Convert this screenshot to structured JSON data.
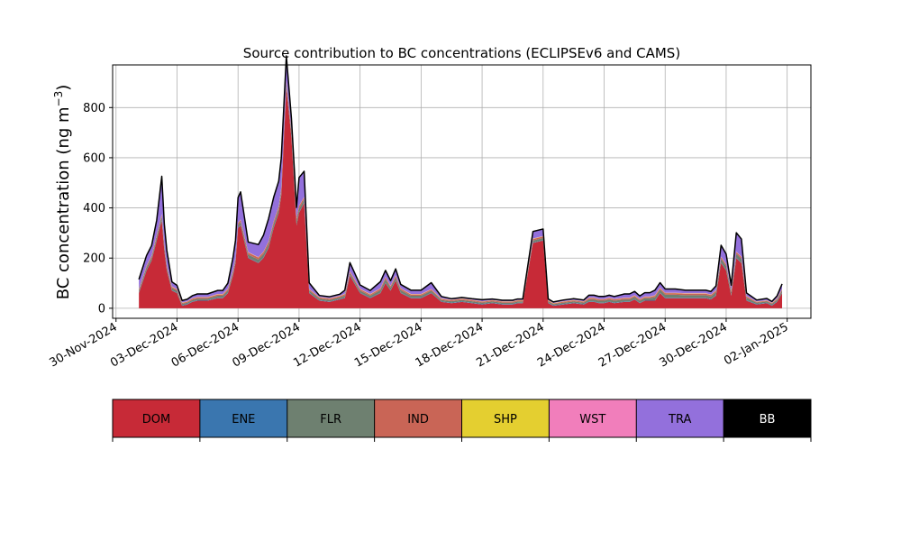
{
  "chart_data": {
    "type": "area",
    "title": "Source contribution to BC concentrations (ECLIPSEv6 and CAMS)",
    "ylabel": "BC concentration (ng m",
    "ylabel_superscript": "−3",
    "ylabel_close": ")",
    "xlabel": "",
    "ylim": [
      -40,
      970
    ],
    "yticks": [
      0,
      200,
      400,
      600,
      800
    ],
    "xlim": [
      "2024-11-29T20:00",
      "2025-01-03T04:00"
    ],
    "xticks": [
      "2024-11-30",
      "2024-12-03",
      "2024-12-06",
      "2024-12-09",
      "2024-12-12",
      "2024-12-15",
      "2024-12-18",
      "2024-12-21",
      "2024-12-24",
      "2024-12-27",
      "2024-12-30",
      "2025-01-02"
    ],
    "xtick_labels": [
      "30-Nov-2024",
      "03-Dec-2024",
      "06-Dec-2024",
      "09-Dec-2024",
      "12-Dec-2024",
      "15-Dec-2024",
      "18-Dec-2024",
      "21-Dec-2024",
      "24-Dec-2024",
      "27-Dec-2024",
      "30-Dec-2024",
      "02-Jan-2025"
    ],
    "grid": true,
    "stacking": "stacked",
    "legend_placement": "below",
    "x": [
      "2024-12-01T03:00",
      "2024-12-01T12:00",
      "2024-12-01T18:00",
      "2024-12-02T00:00",
      "2024-12-02T06:00",
      "2024-12-02T09:00",
      "2024-12-02T12:00",
      "2024-12-02T18:00",
      "2024-12-03T00:00",
      "2024-12-03T06:00",
      "2024-12-03T12:00",
      "2024-12-03T18:00",
      "2024-12-04T00:00",
      "2024-12-04T12:00",
      "2024-12-05T00:00",
      "2024-12-05T06:00",
      "2024-12-05T12:00",
      "2024-12-05T18:00",
      "2024-12-05T21:00",
      "2024-12-06T00:00",
      "2024-12-06T03:00",
      "2024-12-06T12:00",
      "2024-12-07T00:00",
      "2024-12-07T06:00",
      "2024-12-07T12:00",
      "2024-12-07T18:00",
      "2024-12-08T00:00",
      "2024-12-08T03:00",
      "2024-12-08T09:00",
      "2024-12-08T15:00",
      "2024-12-08T21:00",
      "2024-12-09T00:00",
      "2024-12-09T06:00",
      "2024-12-09T12:00",
      "2024-12-10T00:00",
      "2024-12-10T12:00",
      "2024-12-11T00:00",
      "2024-12-11T06:00",
      "2024-12-11T12:00",
      "2024-12-12T00:00",
      "2024-12-12T12:00",
      "2024-12-13T00:00",
      "2024-12-13T06:00",
      "2024-12-13T12:00",
      "2024-12-13T18:00",
      "2024-12-14T00:00",
      "2024-12-14T12:00",
      "2024-12-15T00:00",
      "2024-12-15T12:00",
      "2024-12-16T00:00",
      "2024-12-16T12:00",
      "2024-12-17T00:00",
      "2024-12-17T12:00",
      "2024-12-18T00:00",
      "2024-12-18T12:00",
      "2024-12-19T00:00",
      "2024-12-19T06:00",
      "2024-12-19T12:00",
      "2024-12-19T18:00",
      "2024-12-20T00:00",
      "2024-12-20T12:00",
      "2024-12-21T00:00",
      "2024-12-21T06:00",
      "2024-12-21T12:00",
      "2024-12-22T00:00",
      "2024-12-22T12:00",
      "2024-12-23T00:00",
      "2024-12-23T06:00",
      "2024-12-23T12:00",
      "2024-12-23T18:00",
      "2024-12-24T00:00",
      "2024-12-24T06:00",
      "2024-12-24T12:00",
      "2024-12-25T00:00",
      "2024-12-25T06:00",
      "2024-12-25T12:00",
      "2024-12-25T18:00",
      "2024-12-26T00:00",
      "2024-12-26T06:00",
      "2024-12-26T12:00",
      "2024-12-26T18:00",
      "2024-12-27T00:00",
      "2024-12-27T12:00",
      "2024-12-28T00:00",
      "2024-12-28T12:00",
      "2024-12-29T00:00",
      "2024-12-29T06:00",
      "2024-12-29T12:00",
      "2024-12-29T18:00",
      "2024-12-30T00:00",
      "2024-12-30T06:00",
      "2024-12-30T12:00",
      "2024-12-30T18:00",
      "2024-12-31T00:00",
      "2024-12-31T12:00",
      "2025-01-01T00:00",
      "2025-01-01T06:00",
      "2025-01-01T12:00",
      "2025-01-01T18:00"
    ],
    "series": [
      {
        "name": "DOM",
        "color": "#c72a37",
        "values": [
          60,
          150,
          190,
          270,
          350,
          230,
          150,
          70,
          60,
          10,
          15,
          25,
          30,
          30,
          40,
          40,
          60,
          130,
          180,
          320,
          330,
          200,
          180,
          200,
          240,
          320,
          380,
          450,
          880,
          680,
          330,
          380,
          420,
          60,
          30,
          25,
          35,
          40,
          130,
          60,
          40,
          60,
          100,
          70,
          110,
          60,
          40,
          40,
          60,
          25,
          20,
          25,
          20,
          15,
          20,
          15,
          15,
          15,
          20,
          20,
          260,
          270,
          20,
          10,
          15,
          20,
          15,
          25,
          25,
          20,
          20,
          25,
          20,
          25,
          25,
          35,
          20,
          30,
          30,
          30,
          60,
          40,
          40,
          40,
          40,
          40,
          35,
          50,
          180,
          150,
          50,
          200,
          180,
          30,
          15,
          20,
          10,
          25,
          60
        ]
      },
      {
        "name": "ENE",
        "color": "#3a76af",
        "values": [
          2,
          2,
          2,
          2,
          2,
          2,
          2,
          2,
          2,
          2,
          2,
          2,
          2,
          2,
          2,
          2,
          2,
          2,
          2,
          2,
          2,
          2,
          2,
          2,
          2,
          2,
          2,
          2,
          2,
          2,
          2,
          2,
          2,
          2,
          2,
          2,
          2,
          2,
          2,
          2,
          2,
          2,
          2,
          2,
          2,
          2,
          2,
          2,
          2,
          2,
          2,
          2,
          2,
          2,
          2,
          2,
          2,
          2,
          2,
          2,
          2,
          2,
          2,
          2,
          2,
          2,
          2,
          2,
          2,
          2,
          2,
          2,
          2,
          2,
          2,
          2,
          2,
          2,
          2,
          2,
          2,
          2,
          2,
          2,
          2,
          2,
          2,
          2,
          2,
          2,
          2,
          2,
          2,
          2,
          2,
          2,
          2,
          2,
          2
        ]
      },
      {
        "name": "FLR",
        "color": "#6e8070",
        "values": [
          8,
          10,
          10,
          12,
          14,
          14,
          10,
          8,
          8,
          5,
          5,
          6,
          6,
          6,
          8,
          8,
          8,
          10,
          10,
          10,
          12,
          12,
          12,
          14,
          14,
          14,
          14,
          15,
          15,
          16,
          16,
          15,
          12,
          8,
          6,
          6,
          6,
          8,
          8,
          8,
          8,
          10,
          14,
          10,
          10,
          10,
          8,
          8,
          8,
          6,
          6,
          6,
          6,
          5,
          5,
          5,
          5,
          5,
          5,
          5,
          8,
          8,
          5,
          4,
          5,
          5,
          5,
          8,
          8,
          8,
          8,
          8,
          8,
          8,
          8,
          8,
          8,
          8,
          8,
          12,
          12,
          12,
          12,
          10,
          10,
          10,
          10,
          12,
          15,
          15,
          12,
          15,
          15,
          10,
          5,
          5,
          5,
          6,
          8
        ]
      },
      {
        "name": "IND",
        "color": "#c96556",
        "values": [
          5,
          6,
          6,
          7,
          8,
          8,
          6,
          5,
          5,
          4,
          4,
          5,
          5,
          5,
          5,
          5,
          6,
          7,
          7,
          7,
          8,
          8,
          8,
          8,
          9,
          9,
          9,
          10,
          10,
          10,
          10,
          10,
          8,
          5,
          5,
          5,
          5,
          6,
          6,
          6,
          5,
          6,
          7,
          6,
          7,
          6,
          5,
          5,
          5,
          4,
          4,
          4,
          4,
          4,
          4,
          4,
          4,
          4,
          4,
          4,
          6,
          6,
          4,
          3,
          4,
          4,
          4,
          5,
          5,
          5,
          5,
          5,
          5,
          5,
          5,
          5,
          5,
          5,
          5,
          6,
          6,
          6,
          6,
          6,
          6,
          6,
          6,
          6,
          7,
          7,
          6,
          7,
          7,
          5,
          3,
          3,
          3,
          4,
          5
        ]
      },
      {
        "name": "SHP",
        "color": "#e4cf30",
        "values": [
          1,
          1,
          1,
          1,
          1,
          1,
          1,
          1,
          1,
          1,
          1,
          1,
          1,
          1,
          1,
          1,
          1,
          1,
          1,
          1,
          1,
          1,
          1,
          1,
          1,
          1,
          1,
          1,
          1,
          1,
          1,
          1,
          1,
          1,
          1,
          1,
          1,
          1,
          1,
          1,
          1,
          1,
          1,
          1,
          1,
          1,
          1,
          1,
          1,
          1,
          1,
          1,
          1,
          1,
          1,
          1,
          1,
          1,
          1,
          1,
          1,
          1,
          1,
          1,
          1,
          1,
          1,
          1,
          1,
          1,
          1,
          1,
          1,
          1,
          1,
          1,
          1,
          1,
          1,
          1,
          1,
          1,
          1,
          1,
          1,
          1,
          1,
          1,
          1,
          1,
          1,
          1,
          1,
          1,
          1,
          1,
          1,
          1,
          1
        ]
      },
      {
        "name": "WST",
        "color": "#f17ebb",
        "values": [
          1,
          1,
          1,
          1,
          1,
          1,
          1,
          1,
          1,
          1,
          1,
          1,
          1,
          1,
          1,
          1,
          1,
          1,
          1,
          1,
          1,
          1,
          1,
          1,
          1,
          1,
          1,
          1,
          1,
          1,
          1,
          1,
          1,
          1,
          1,
          1,
          1,
          1,
          1,
          1,
          1,
          1,
          1,
          1,
          1,
          1,
          1,
          1,
          1,
          1,
          1,
          1,
          1,
          1,
          1,
          1,
          1,
          1,
          1,
          1,
          1,
          1,
          1,
          1,
          1,
          1,
          1,
          1,
          1,
          1,
          1,
          1,
          1,
          1,
          1,
          1,
          1,
          1,
          1,
          1,
          1,
          1,
          1,
          1,
          1,
          1,
          1,
          1,
          1,
          1,
          1,
          1,
          1,
          1,
          1,
          1,
          1,
          1,
          1
        ]
      },
      {
        "name": "TRA",
        "color": "#9370dc",
        "values": [
          38,
          40,
          40,
          58,
          150,
          80,
          60,
          18,
          14,
          8,
          8,
          10,
          12,
          12,
          14,
          14,
          22,
          50,
          70,
          100,
          110,
          40,
          50,
          65,
          90,
          95,
          100,
          120,
          97,
          47,
          42,
          112,
          102,
          24,
          6,
          6,
          6,
          14,
          34,
          15,
          14,
          26,
          26,
          20,
          26,
          15,
          15,
          15,
          25,
          8,
          4,
          4,
          4,
          6,
          4,
          4,
          4,
          4,
          4,
          4,
          28,
          28,
          4,
          4,
          5,
          5,
          5,
          10,
          10,
          10,
          10,
          10,
          10,
          15,
          15,
          15,
          12,
          15,
          15,
          20,
          20,
          15,
          15,
          12,
          12,
          12,
          12,
          17,
          45,
          40,
          20,
          75,
          70,
          12,
          6,
          7,
          5,
          10,
          20
        ]
      },
      {
        "name": "BB",
        "color": "#000000",
        "values": [
          0,
          0,
          0,
          0,
          0,
          0,
          0,
          0,
          0,
          0,
          0,
          0,
          0,
          0,
          0,
          0,
          0,
          0,
          0,
          0,
          0,
          0,
          0,
          0,
          0,
          0,
          0,
          0,
          0,
          0,
          0,
          0,
          0,
          0,
          0,
          0,
          0,
          0,
          0,
          0,
          0,
          0,
          0,
          0,
          0,
          0,
          0,
          0,
          0,
          0,
          0,
          0,
          0,
          0,
          0,
          0,
          0,
          0,
          0,
          0,
          0,
          0,
          0,
          0,
          0,
          0,
          0,
          0,
          0,
          0,
          0,
          0,
          0,
          0,
          0,
          0,
          0,
          0,
          0,
          0,
          0,
          0,
          0,
          0,
          0,
          0,
          0,
          0,
          0,
          0,
          0,
          0,
          0,
          0,
          0,
          0,
          0,
          0,
          0
        ]
      }
    ],
    "legend": [
      {
        "label": "DOM",
        "color": "#c72a37",
        "text_color": "#000000"
      },
      {
        "label": "ENE",
        "color": "#3a76af",
        "text_color": "#000000"
      },
      {
        "label": "FLR",
        "color": "#6e8070",
        "text_color": "#000000"
      },
      {
        "label": "IND",
        "color": "#c96556",
        "text_color": "#000000"
      },
      {
        "label": "SHP",
        "color": "#e4cf30",
        "text_color": "#000000"
      },
      {
        "label": "WST",
        "color": "#f17ebb",
        "text_color": "#000000"
      },
      {
        "label": "TRA",
        "color": "#9370dc",
        "text_color": "#000000"
      },
      {
        "label": "BB",
        "color": "#000000",
        "text_color": "#ffffff"
      }
    ]
  }
}
